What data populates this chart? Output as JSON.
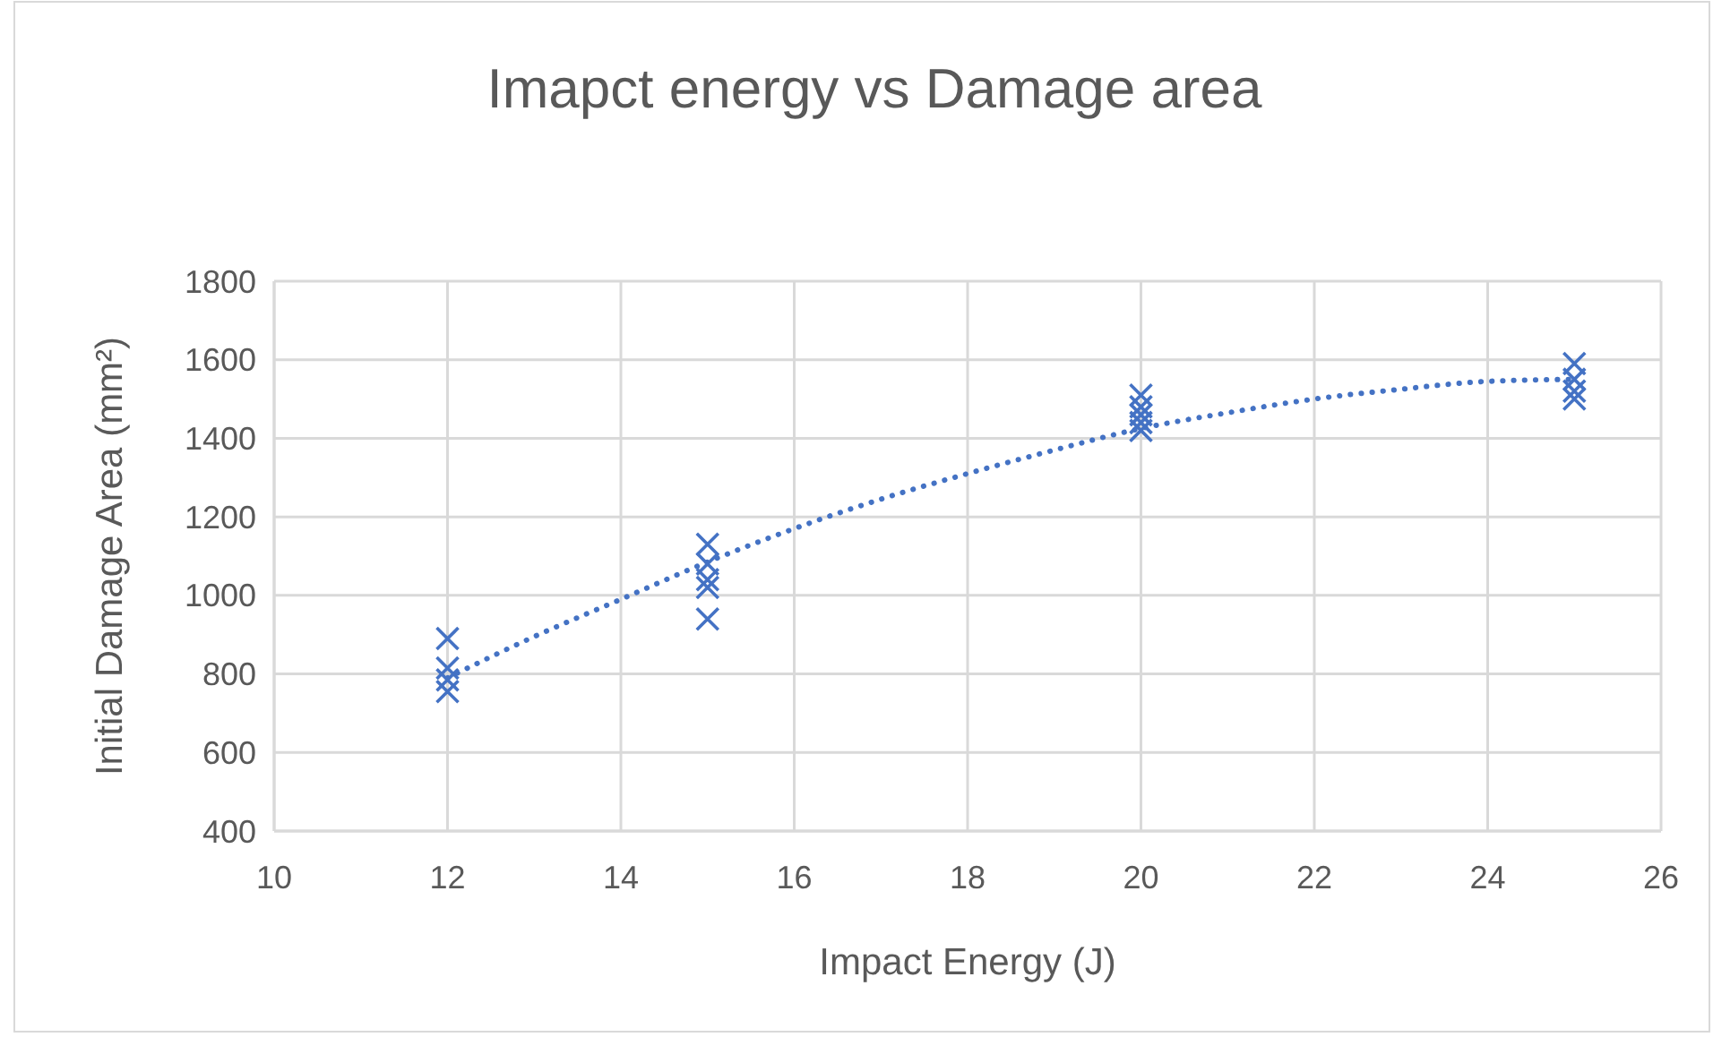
{
  "chart_data": {
    "type": "scatter",
    "title": "Imapct energy vs Damage area",
    "xlabel": "Impact Energy (J)",
    "ylabel": "Initial Damage Area (mm²)",
    "xlim": [
      10,
      26
    ],
    "xticks": [
      10,
      12,
      14,
      16,
      18,
      20,
      22,
      24,
      26
    ],
    "ylim": [
      400,
      1800
    ],
    "yticks": [
      400,
      600,
      800,
      1000,
      1200,
      1400,
      1600,
      1800
    ],
    "grid": true,
    "series": [
      {
        "color": "#4472c4",
        "marker": "cross",
        "x": [
          12,
          12,
          12,
          12,
          15,
          15,
          15,
          15,
          15,
          20,
          20,
          20,
          20,
          20,
          25,
          25,
          25,
          25
        ],
        "values": [
          890,
          815,
          785,
          755,
          1130,
          1080,
          1040,
          1020,
          940,
          1510,
          1480,
          1460,
          1440,
          1420,
          1590,
          1550,
          1520,
          1500
        ]
      },
      {
        "type": "line",
        "color": "#4472c4",
        "line_style": "dotted",
        "marker": "none",
        "x": [
          12,
          13,
          14,
          15,
          16,
          17,
          18,
          19,
          20,
          21,
          22,
          23,
          24,
          25
        ],
        "values": [
          790,
          895,
          990,
          1085,
          1170,
          1245,
          1310,
          1370,
          1425,
          1465,
          1500,
          1525,
          1545,
          1550
        ]
      }
    ]
  }
}
